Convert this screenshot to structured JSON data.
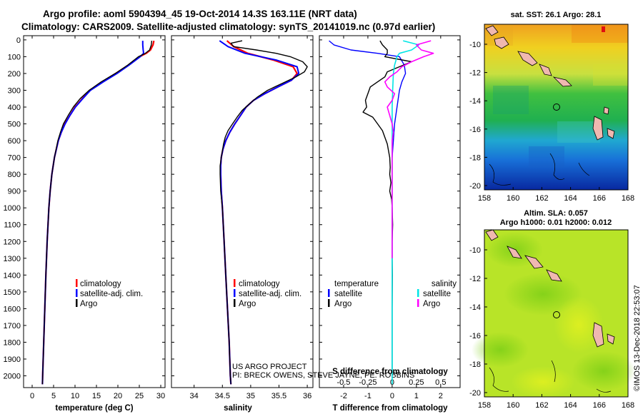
{
  "header": {
    "title_line1": "Argo profile: aoml 5904394_45 19-Oct-2014 14.3S 163.11E (NRT data)",
    "title_line2": "Climatology: CARS2009. Satellite-adjusted climatology: synTS_20141019.nc (0.97d earlier)"
  },
  "colors": {
    "climatology": "#ff0000",
    "satellite": "#0000ff",
    "argo": "#000000",
    "sal_satellite": "#00e5e5",
    "sal_argo": "#ff00ff"
  },
  "pressure_ticks": [
    "0",
    "100",
    "200",
    "300",
    "400",
    "500",
    "600",
    "700",
    "800",
    "900",
    "1000",
    "1100",
    "1200",
    "1300",
    "1400",
    "1500",
    "1600",
    "1700",
    "1800",
    "1900",
    "2000"
  ],
  "chart_data": [
    {
      "type": "line",
      "name": "temperature",
      "xlabel": "temperature (deg C)",
      "ylabel": "pressure (dbar)",
      "xlim": [
        -2,
        31
      ],
      "ylim": [
        2070,
        -25
      ],
      "xticks": [
        "0",
        "5",
        "10",
        "15",
        "20",
        "25",
        "30"
      ],
      "xtick_values": [
        0,
        5,
        10,
        15,
        20,
        25,
        30
      ],
      "legend": [
        "climatology",
        "satellite-adj. clim.",
        "Argo"
      ],
      "series": [
        {
          "name": "climatology",
          "color": "#ff0000",
          "width": 2.2,
          "pressure": [
            5,
            30,
            60,
            80,
            100,
            150,
            200,
            250,
            300,
            350,
            400,
            450,
            500,
            550,
            600,
            700,
            800,
            900,
            1000,
            1200,
            1400,
            1600,
            1800,
            2000,
            2050
          ],
          "values": [
            28.4,
            28.2,
            27.6,
            26.6,
            25.1,
            22.5,
            19.5,
            16.4,
            13.5,
            11.7,
            10.0,
            8.8,
            7.6,
            6.8,
            6.1,
            5.2,
            4.6,
            4.2,
            3.9,
            3.5,
            3.2,
            2.95,
            2.7,
            2.45,
            2.4
          ]
        },
        {
          "name": "satellite-adj. clim.",
          "color": "#0000ff",
          "width": 2.0,
          "pressure": [
            5,
            30,
            60,
            80,
            100,
            150,
            200,
            250,
            300,
            350,
            400,
            450,
            500,
            550,
            600,
            700,
            800,
            900,
            1000,
            1200,
            1400,
            1600,
            1800,
            2000,
            2050
          ],
          "values": [
            25.8,
            25.8,
            25.9,
            26.0,
            25.2,
            22.6,
            19.8,
            16.6,
            13.6,
            11.8,
            10.1,
            8.8,
            7.7,
            6.8,
            6.1,
            5.2,
            4.6,
            4.2,
            3.9,
            3.5,
            3.2,
            2.95,
            2.7,
            2.45,
            2.4
          ]
        },
        {
          "name": "Argo",
          "color": "#000000",
          "width": 1.4,
          "pressure": [
            5,
            30,
            60,
            80,
            100,
            150,
            200,
            250,
            300,
            350,
            400,
            450,
            500,
            550,
            600,
            700,
            800,
            900,
            1000,
            1200,
            1400,
            1600,
            1800,
            2000,
            2050
          ],
          "values": [
            27.9,
            27.8,
            27.4,
            26.4,
            24.8,
            22.3,
            19.4,
            16.1,
            13.3,
            11.2,
            9.6,
            8.4,
            7.3,
            6.6,
            6.0,
            5.2,
            4.6,
            4.2,
            3.9,
            3.5,
            3.2,
            2.95,
            2.7,
            2.45,
            2.4
          ]
        }
      ]
    },
    {
      "type": "line",
      "name": "salinity",
      "xlabel": "salinity",
      "ylabel": "pressure (dbar)",
      "xlim": [
        33.6,
        36.1
      ],
      "ylim": [
        2070,
        -25
      ],
      "xticks": [
        "34",
        "34.5",
        "35",
        "35.5",
        "36"
      ],
      "xtick_values": [
        34,
        34.5,
        35,
        35.5,
        36
      ],
      "legend": [
        "climatology",
        "satellite-adj. clim.",
        "Argo"
      ],
      "series": [
        {
          "name": "climatology",
          "color": "#ff0000",
          "width": 2.2,
          "pressure": [
            5,
            40,
            80,
            120,
            160,
            200,
            240,
            280,
            320,
            360,
            400,
            450,
            500,
            550,
            600,
            650,
            700,
            750,
            800,
            900,
            1000,
            1200,
            1400,
            1600,
            1800,
            2000,
            2050
          ],
          "values": [
            34.58,
            34.7,
            34.95,
            35.4,
            35.75,
            35.82,
            35.72,
            35.48,
            35.25,
            35.05,
            34.92,
            34.82,
            34.72,
            34.63,
            34.56,
            34.51,
            34.48,
            34.47,
            34.47,
            34.48,
            34.5,
            34.53,
            34.56,
            34.59,
            34.62,
            34.64,
            34.65
          ]
        },
        {
          "name": "satellite-adj. clim.",
          "color": "#0000ff",
          "width": 2.0,
          "pressure": [
            5,
            40,
            80,
            120,
            160,
            200,
            240,
            280,
            320,
            360,
            400,
            450,
            500,
            550,
            600,
            650,
            700,
            750,
            800,
            900,
            1000,
            1200,
            1400,
            1600,
            1800,
            2000,
            2050
          ],
          "values": [
            34.45,
            34.6,
            34.9,
            35.45,
            35.82,
            35.85,
            35.72,
            35.48,
            35.25,
            35.05,
            34.92,
            34.82,
            34.72,
            34.63,
            34.56,
            34.51,
            34.48,
            34.47,
            34.47,
            34.48,
            34.5,
            34.53,
            34.56,
            34.59,
            34.62,
            34.64,
            34.65
          ]
        },
        {
          "name": "Argo",
          "color": "#000000",
          "width": 1.4,
          "pressure": [
            5,
            20,
            40,
            60,
            80,
            100,
            130,
            160,
            190,
            220,
            260,
            300,
            340,
            380,
            420,
            460,
            500,
            540,
            580,
            620,
            660,
            700,
            750,
            800,
            900,
            1000,
            1200,
            1400,
            1600,
            1800,
            2000,
            2050
          ],
          "values": [
            34.85,
            34.65,
            34.7,
            35.1,
            35.45,
            35.7,
            35.92,
            36.0,
            35.95,
            35.8,
            35.55,
            35.3,
            35.12,
            34.98,
            34.85,
            34.76,
            34.68,
            34.6,
            34.55,
            34.52,
            34.5,
            34.48,
            34.46,
            34.46,
            34.47,
            34.5,
            34.53,
            34.56,
            34.59,
            34.62,
            34.64,
            34.65
          ]
        }
      ]
    },
    {
      "type": "line",
      "name": "difference",
      "xlabel": "T difference from climatology",
      "xlabel_top": "S difference from climatology",
      "xlim": [
        -3.0,
        2.8
      ],
      "ylim": [
        2070,
        -25
      ],
      "xticks": [
        "-2",
        "-1",
        "0",
        "1",
        "2"
      ],
      "xtick_values": [
        -2,
        -1,
        0,
        1,
        2
      ],
      "sticks": [
        "-0.5",
        "-0.25",
        "0",
        "0.25",
        "0.5"
      ],
      "stick_values": [
        -2,
        -1,
        0,
        1,
        2
      ],
      "legend_temperature_title": "temperature",
      "legend_salinity_title": "salinity",
      "legend_temperature": [
        "satellite",
        "Argo"
      ],
      "legend_salinity": [
        "satellite",
        "Argo"
      ],
      "series": [
        {
          "name": "T satellite",
          "color": "#0000ff",
          "width": 1.4,
          "pressure": [
            5,
            30,
            60,
            80,
            100,
            150,
            200,
            250,
            300,
            400,
            500,
            600,
            700
          ],
          "values": [
            -2.6,
            -2.4,
            -1.7,
            -0.6,
            0.3,
            0.5,
            0.55,
            0.4,
            0.3,
            0.2,
            0.1,
            0.05,
            0.0
          ]
        },
        {
          "name": "T Argo",
          "color": "#000000",
          "width": 1.4,
          "pressure": [
            5,
            30,
            60,
            80,
            100,
            130,
            160,
            190,
            220,
            250,
            280,
            320,
            360,
            400,
            430,
            460,
            500,
            540,
            580,
            620,
            660,
            700,
            760,
            800,
            850,
            900,
            950,
            1000,
            1100,
            1200,
            1300,
            1400,
            1600,
            1800,
            2000
          ],
          "values": [
            -0.5,
            -0.4,
            -0.2,
            -0.2,
            -0.3,
            0.8,
            0.3,
            -0.2,
            -0.3,
            -0.6,
            -0.9,
            -1.0,
            -1.1,
            -1.05,
            -1.2,
            -0.8,
            -0.6,
            -0.4,
            -0.3,
            -0.2,
            -0.15,
            -0.1,
            -0.08,
            -0.1,
            -0.05,
            -0.1,
            -0.02,
            0.0,
            0.02,
            0.0,
            0.0,
            0.01,
            0.0,
            0.0,
            0.0
          ]
        },
        {
          "name": "S satellite",
          "color": "#00e5e5",
          "width": 1.6,
          "pressure": [
            5,
            30,
            60,
            80,
            100,
            150,
            200,
            300,
            400,
            500,
            600,
            700,
            900,
            1100,
            1400,
            1700,
            2000,
            2050
          ],
          "values": [
            0.45,
            1.1,
            0.8,
            0.3,
            0.2,
            0.1,
            0.05,
            0.02,
            0.0,
            0.0,
            0.0,
            0.0,
            0.0,
            0.0,
            0.0,
            0.0,
            0.0,
            0.0
          ]
        },
        {
          "name": "S Argo",
          "color": "#ff00ff",
          "width": 1.6,
          "pressure": [
            5,
            30,
            60,
            80,
            100,
            130,
            160,
            190,
            220,
            250,
            280,
            320,
            360,
            400,
            450,
            500,
            550,
            600,
            700,
            800,
            900,
            1000,
            1200,
            1300
          ],
          "values": [
            1.6,
            1.0,
            1.2,
            1.7,
            1.3,
            0.8,
            0.4,
            0.2,
            -0.1,
            -0.3,
            -0.2,
            0.1,
            0.0,
            -0.2,
            -0.1,
            0.0,
            0.05,
            0.0,
            0.0,
            0.0,
            0.0,
            0.0,
            0.0,
            0.0
          ]
        }
      ]
    }
  ],
  "credits": {
    "line1": "US ARGO PROJECT",
    "line2": "PI: BRECK OWENS, STEVE JAYNE, PE. ROBBINS"
  },
  "map_sst": {
    "title": "sat. SST: 26.1  Argo: 28.1",
    "yticks": [
      "-10",
      "-12",
      "-14",
      "-16",
      "-18",
      "-20"
    ],
    "xticks": [
      "158",
      "160",
      "162",
      "164",
      "166",
      "168"
    ]
  },
  "map_sla": {
    "title_line1": "Altim. SLA: 0.057",
    "title_line2": "Argo h1000: 0.01 h2000: 0.012",
    "yticks": [
      "-10",
      "-12",
      "-14",
      "-16",
      "-18",
      "-20"
    ],
    "xticks": [
      "158",
      "160",
      "162",
      "164",
      "166",
      "168"
    ]
  },
  "stamp": "©IMOS 13-Dec-2018 22:53:07"
}
